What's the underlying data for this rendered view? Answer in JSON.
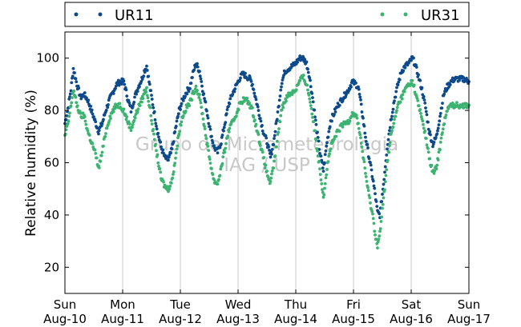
{
  "chart_data": {
    "type": "scatter",
    "ylabel": "Relative humidity (%)",
    "ylim": [
      10,
      110
    ],
    "yticks": [
      20,
      40,
      60,
      80,
      100
    ],
    "xlim_hours": [
      0,
      168
    ],
    "x_ticks": [
      {
        "day": "Sun",
        "date": "Aug-10"
      },
      {
        "day": "Mon",
        "date": "Aug-11"
      },
      {
        "day": "Tue",
        "date": "Aug-12"
      },
      {
        "day": "Wed",
        "date": "Aug-13"
      },
      {
        "day": "Thu",
        "date": "Aug-14"
      },
      {
        "day": "Fri",
        "date": "Aug-15"
      },
      {
        "day": "Sat",
        "date": "Aug-16"
      },
      {
        "day": "Sun",
        "date": "Aug-17"
      }
    ],
    "grid": "vertical",
    "legend": "top",
    "watermark": [
      "Grupo de Micrometeorologia",
      "IAG / USP"
    ],
    "series": [
      {
        "name": "UR11",
        "color": "#0d4a8c",
        "points": [
          [
            0,
            75
          ],
          [
            1.5,
            82
          ],
          [
            2.5,
            88
          ],
          [
            3.5,
            96
          ],
          [
            5,
            90
          ],
          [
            6.5,
            85
          ],
          [
            8,
            86
          ],
          [
            9.5,
            84
          ],
          [
            11,
            80
          ],
          [
            12.5,
            76
          ],
          [
            14,
            72
          ],
          [
            15.5,
            75
          ],
          [
            17,
            80
          ],
          [
            18.5,
            84
          ],
          [
            20,
            87
          ],
          [
            21.5,
            90
          ],
          [
            23,
            91
          ],
          [
            24.5,
            91
          ],
          [
            26,
            85
          ],
          [
            27.5,
            80
          ],
          [
            29,
            85
          ],
          [
            30.5,
            89
          ],
          [
            32,
            92
          ],
          [
            33,
            95
          ],
          [
            34,
            97
          ],
          [
            35.5,
            88
          ],
          [
            37,
            80
          ],
          [
            38.5,
            72
          ],
          [
            40,
            66
          ],
          [
            41.5,
            62
          ],
          [
            43,
            61
          ],
          [
            44.5,
            65
          ],
          [
            46,
            73
          ],
          [
            47.5,
            80
          ],
          [
            49,
            84
          ],
          [
            50.5,
            87
          ],
          [
            52,
            89
          ],
          [
            53.5,
            95
          ],
          [
            54.5,
            98
          ],
          [
            56,
            95
          ],
          [
            57.5,
            87
          ],
          [
            59,
            80
          ],
          [
            60.5,
            72
          ],
          [
            62,
            66
          ],
          [
            63.5,
            64
          ],
          [
            65,
            68
          ],
          [
            66.5,
            75
          ],
          [
            68,
            82
          ],
          [
            69.5,
            86
          ],
          [
            71,
            89
          ],
          [
            72.5,
            92
          ],
          [
            74,
            94
          ],
          [
            75.5,
            93
          ],
          [
            77,
            92
          ],
          [
            78,
            90
          ],
          [
            79.5,
            84
          ],
          [
            81,
            78
          ],
          [
            82.5,
            72
          ],
          [
            84,
            68
          ],
          [
            85.5,
            62
          ],
          [
            87,
            69
          ],
          [
            88.5,
            79
          ],
          [
            90,
            90
          ],
          [
            91.5,
            95
          ],
          [
            93,
            96
          ],
          [
            94.5,
            97
          ],
          [
            96,
            98
          ],
          [
            97.5,
            100
          ],
          [
            99,
            100
          ],
          [
            100.5,
            98
          ],
          [
            101.5,
            94
          ],
          [
            103,
            85
          ],
          [
            104.5,
            74
          ],
          [
            106,
            64
          ],
          [
            107.5,
            57
          ],
          [
            109,
            68
          ],
          [
            110.5,
            76
          ],
          [
            112,
            79
          ],
          [
            113.5,
            82
          ],
          [
            115,
            84
          ],
          [
            116.5,
            86
          ],
          [
            118,
            88
          ],
          [
            119.5,
            91
          ],
          [
            121,
            90
          ],
          [
            122,
            89
          ],
          [
            123.5,
            80
          ],
          [
            125,
            70
          ],
          [
            126.5,
            62
          ],
          [
            128,
            54
          ],
          [
            129,
            48
          ],
          [
            130,
            41
          ],
          [
            131,
            40
          ],
          [
            132.5,
            52
          ],
          [
            134,
            66
          ],
          [
            135.5,
            76
          ],
          [
            137,
            84
          ],
          [
            138.5,
            90
          ],
          [
            140,
            95
          ],
          [
            141.5,
            97
          ],
          [
            143,
            98
          ],
          [
            144.5,
            100
          ],
          [
            145.5,
            98
          ],
          [
            147,
            93
          ],
          [
            148.5,
            88
          ],
          [
            150,
            81
          ],
          [
            151.5,
            72
          ],
          [
            153,
            67
          ],
          [
            154.5,
            70
          ],
          [
            156,
            78
          ],
          [
            157.5,
            86
          ],
          [
            159,
            89
          ],
          [
            160.5,
            91
          ],
          [
            162,
            92
          ],
          [
            164,
            92
          ],
          [
            166,
            92
          ],
          [
            168,
            91
          ]
        ]
      },
      {
        "name": "UR31",
        "color": "#3cb371",
        "points": [
          [
            0,
            70
          ],
          [
            1.5,
            76
          ],
          [
            2.5,
            82
          ],
          [
            3.5,
            88
          ],
          [
            5,
            82
          ],
          [
            6.5,
            78
          ],
          [
            8,
            78
          ],
          [
            9.5,
            72
          ],
          [
            11,
            68
          ],
          [
            12.5,
            64
          ],
          [
            14,
            58
          ],
          [
            15.5,
            64
          ],
          [
            17,
            72
          ],
          [
            18.5,
            77
          ],
          [
            20,
            80
          ],
          [
            21.5,
            82
          ],
          [
            23,
            82
          ],
          [
            24.5,
            80
          ],
          [
            26,
            76
          ],
          [
            27.5,
            73
          ],
          [
            29,
            77
          ],
          [
            30.5,
            81
          ],
          [
            32,
            84
          ],
          [
            33,
            87
          ],
          [
            34,
            88
          ],
          [
            35.5,
            80
          ],
          [
            37,
            70
          ],
          [
            38.5,
            62
          ],
          [
            40,
            54
          ],
          [
            41.5,
            51
          ],
          [
            43,
            50
          ],
          [
            44.5,
            53
          ],
          [
            46,
            62
          ],
          [
            47.5,
            72
          ],
          [
            49,
            78
          ],
          [
            50.5,
            81
          ],
          [
            52,
            83
          ],
          [
            53.5,
            87
          ],
          [
            54.5,
            89
          ],
          [
            56,
            85
          ],
          [
            57.5,
            77
          ],
          [
            59,
            68
          ],
          [
            60.5,
            60
          ],
          [
            62,
            53
          ],
          [
            63.5,
            52
          ],
          [
            65,
            58
          ],
          [
            66.5,
            65
          ],
          [
            68,
            72
          ],
          [
            69.5,
            75
          ],
          [
            71,
            78
          ],
          [
            72.5,
            82
          ],
          [
            74,
            84
          ],
          [
            75.5,
            84
          ],
          [
            77,
            82
          ],
          [
            78,
            80
          ],
          [
            79.5,
            74
          ],
          [
            81,
            68
          ],
          [
            82.5,
            62
          ],
          [
            84,
            56
          ],
          [
            85.5,
            52
          ],
          [
            87,
            60
          ],
          [
            88.5,
            70
          ],
          [
            90,
            80
          ],
          [
            91.5,
            84
          ],
          [
            93,
            86
          ],
          [
            94.5,
            87
          ],
          [
            96,
            88
          ],
          [
            97.5,
            91
          ],
          [
            99,
            93
          ],
          [
            100.5,
            90
          ],
          [
            101.5,
            86
          ],
          [
            103,
            78
          ],
          [
            104.5,
            68
          ],
          [
            106,
            58
          ],
          [
            107.5,
            47
          ],
          [
            109,
            58
          ],
          [
            110.5,
            66
          ],
          [
            112,
            69
          ],
          [
            113.5,
            72
          ],
          [
            115,
            74
          ],
          [
            116.5,
            75
          ],
          [
            118,
            76
          ],
          [
            119.5,
            79
          ],
          [
            121,
            78
          ],
          [
            122,
            75
          ],
          [
            123.5,
            66
          ],
          [
            125,
            56
          ],
          [
            126.5,
            47
          ],
          [
            128,
            40
          ],
          [
            129,
            33
          ],
          [
            130,
            28
          ],
          [
            131,
            33
          ],
          [
            132.5,
            46
          ],
          [
            134,
            60
          ],
          [
            135.5,
            70
          ],
          [
            137,
            76
          ],
          [
            138.5,
            82
          ],
          [
            140,
            85
          ],
          [
            141.5,
            88
          ],
          [
            143,
            90
          ],
          [
            144.5,
            91
          ],
          [
            145.5,
            88
          ],
          [
            147,
            82
          ],
          [
            148.5,
            77
          ],
          [
            150,
            70
          ],
          [
            151.5,
            62
          ],
          [
            153,
            56
          ],
          [
            154.5,
            58
          ],
          [
            156,
            66
          ],
          [
            157.5,
            75
          ],
          [
            159,
            80
          ],
          [
            160.5,
            82
          ],
          [
            162,
            82
          ],
          [
            164,
            82
          ],
          [
            166,
            82
          ],
          [
            168,
            82
          ]
        ]
      }
    ]
  }
}
